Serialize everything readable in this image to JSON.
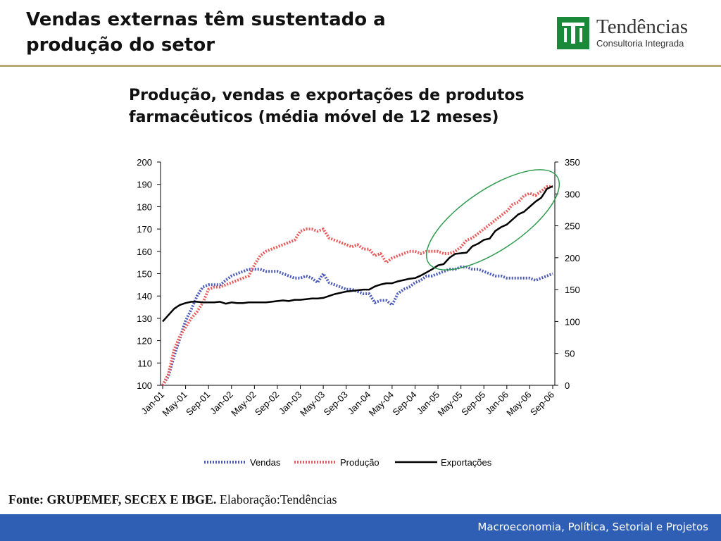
{
  "slide": {
    "title": "Vendas externas têm sustentado a produção do setor",
    "logo_name": "Tendências",
    "logo_tagline": "Consultoria Integrada",
    "source_bold": "Fonte: GRUPEMEF, SECEX E IBGE.",
    "source_rest": " Elaboração:Tendências",
    "footer": "Macroeconomia, Política, Setorial e Projetos",
    "colors": {
      "footer": "#2f5fb4",
      "logo_green": "#1a8a3a",
      "divider": "#b8a878"
    }
  },
  "chart_data": {
    "type": "line",
    "title": "Produção, vendas e exportações de produtos farmacêuticos (média móvel de 12 meses)",
    "xlabel": "",
    "ylabel": "",
    "x": [
      "Jan-01",
      "Feb-01",
      "Mar-01",
      "Apr-01",
      "May-01",
      "Jun-01",
      "Jul-01",
      "Aug-01",
      "Sep-01",
      "Oct-01",
      "Nov-01",
      "Dec-01",
      "Jan-02",
      "Feb-02",
      "Mar-02",
      "Apr-02",
      "May-02",
      "Jun-02",
      "Jul-02",
      "Aug-02",
      "Sep-02",
      "Oct-02",
      "Nov-02",
      "Dec-02",
      "Jan-03",
      "Feb-03",
      "Mar-03",
      "Apr-03",
      "May-03",
      "Jun-03",
      "Jul-03",
      "Aug-03",
      "Sep-03",
      "Oct-03",
      "Nov-03",
      "Dec-03",
      "Jan-04",
      "Feb-04",
      "Mar-04",
      "Apr-04",
      "May-04",
      "Jun-04",
      "Jul-04",
      "Aug-04",
      "Sep-04",
      "Oct-04",
      "Nov-04",
      "Dec-04",
      "Jan-05",
      "Feb-05",
      "Mar-05",
      "Apr-05",
      "May-05",
      "Jun-05",
      "Jul-05",
      "Aug-05",
      "Sep-05",
      "Oct-05",
      "Nov-05",
      "Dec-05",
      "Jan-06",
      "Feb-06",
      "Mar-06",
      "Apr-06",
      "May-06",
      "Jun-06",
      "Jul-06",
      "Aug-06",
      "Sep-06"
    ],
    "tick_labels": [
      "Jan-01",
      "May-01",
      "Sep-01",
      "Jan-02",
      "May-02",
      "Sep-02",
      "Jan-03",
      "May-03",
      "Sep-03",
      "Jan-04",
      "May-04",
      "Sep-04",
      "Jan-05",
      "May-05",
      "Sep-05",
      "Jan-06",
      "May-06",
      "Sep-06"
    ],
    "ylim_left": [
      100,
      200
    ],
    "yticks_left": [
      100,
      110,
      120,
      130,
      140,
      150,
      160,
      170,
      180,
      190,
      200
    ],
    "ylim_right": [
      0,
      350
    ],
    "yticks_right": [
      0,
      50,
      100,
      150,
      200,
      250,
      300,
      350
    ],
    "legend_position": "bottom",
    "series": [
      {
        "name": "Vendas",
        "axis": "left",
        "color": "#4a5ab8",
        "style": "dotted",
        "values": [
          100,
          104,
          113,
          121,
          129,
          134,
          140,
          144,
          145,
          145,
          145,
          147,
          149,
          150,
          151,
          152,
          152,
          152,
          151,
          151,
          151,
          150,
          149,
          148,
          148,
          149,
          148,
          146,
          150,
          146,
          145,
          144,
          143,
          143,
          142,
          141,
          141,
          137,
          138,
          138,
          136,
          141,
          143,
          144,
          146,
          147,
          149,
          149,
          150,
          151,
          152,
          152,
          153,
          153,
          152,
          152,
          151,
          150,
          149,
          149,
          148,
          148,
          148,
          148,
          148,
          147,
          148,
          149,
          150
        ]
      },
      {
        "name": "Produção",
        "axis": "left",
        "color": "#e85a5a",
        "style": "dotted",
        "values": [
          100,
          105,
          116,
          122,
          126,
          130,
          133,
          137,
          143,
          144,
          144,
          145,
          146,
          147,
          148,
          149,
          154,
          158,
          160,
          161,
          162,
          163,
          164,
          165,
          169,
          170,
          170,
          169,
          170,
          166,
          165,
          164,
          163,
          162,
          163,
          161,
          161,
          158,
          159,
          155,
          157,
          158,
          159,
          160,
          160,
          159,
          160,
          160,
          160,
          159,
          159,
          160,
          162,
          165,
          166,
          168,
          170,
          172,
          174,
          176,
          178,
          181,
          182,
          185,
          186,
          185,
          187,
          189,
          189
        ]
      },
      {
        "name": "Exportações",
        "axis": "right",
        "color": "#000000",
        "style": "solid",
        "values": [
          100,
          110,
          120,
          126,
          129,
          131,
          131,
          130,
          130,
          130,
          131,
          128,
          130,
          129,
          129,
          130,
          130,
          130,
          130,
          131,
          132,
          133,
          132,
          134,
          134,
          135,
          136,
          136,
          137,
          140,
          143,
          145,
          147,
          148,
          149,
          150,
          150,
          155,
          158,
          160,
          160,
          163,
          165,
          167,
          168,
          172,
          177,
          182,
          188,
          190,
          200,
          206,
          207,
          208,
          218,
          222,
          228,
          230,
          242,
          248,
          252,
          260,
          268,
          272,
          280,
          288,
          294,
          308,
          312
        ]
      }
    ],
    "annotation": "green ellipse highlighting 2005–2006 rise"
  }
}
